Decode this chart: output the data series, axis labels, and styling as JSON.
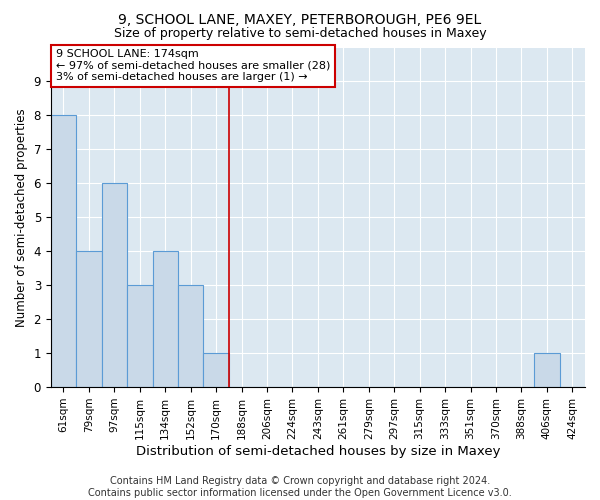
{
  "title": "9, SCHOOL LANE, MAXEY, PETERBOROUGH, PE6 9EL",
  "subtitle": "Size of property relative to semi-detached houses in Maxey",
  "xlabel": "Distribution of semi-detached houses by size in Maxey",
  "ylabel": "Number of semi-detached properties",
  "categories": [
    "61sqm",
    "79sqm",
    "97sqm",
    "115sqm",
    "134sqm",
    "152sqm",
    "170sqm",
    "188sqm",
    "206sqm",
    "224sqm",
    "243sqm",
    "261sqm",
    "279sqm",
    "297sqm",
    "315sqm",
    "333sqm",
    "351sqm",
    "370sqm",
    "388sqm",
    "406sqm",
    "424sqm"
  ],
  "values": [
    8,
    4,
    6,
    3,
    4,
    3,
    1,
    0,
    0,
    0,
    0,
    0,
    0,
    0,
    0,
    0,
    0,
    0,
    0,
    1,
    0
  ],
  "bar_color": "#c9d9e8",
  "bar_edge_color": "#5b9bd5",
  "highlight_index": 6,
  "highlight_line_color": "#cc0000",
  "annotation_text": "9 SCHOOL LANE: 174sqm\n← 97% of semi-detached houses are smaller (28)\n3% of semi-detached houses are larger (1) →",
  "annotation_box_color": "#ffffff",
  "annotation_box_edge_color": "#cc0000",
  "ylim": [
    0,
    10
  ],
  "yticks": [
    0,
    1,
    2,
    3,
    4,
    5,
    6,
    7,
    8,
    9
  ],
  "footer": "Contains HM Land Registry data © Crown copyright and database right 2024.\nContains public sector information licensed under the Open Government Licence v3.0.",
  "background_color": "#dce8f1",
  "grid_color": "#ffffff",
  "title_fontsize": 10,
  "subtitle_fontsize": 9,
  "xlabel_fontsize": 9.5,
  "ylabel_fontsize": 8.5,
  "tick_fontsize": 7.5,
  "footer_fontsize": 7,
  "annot_fontsize": 8
}
